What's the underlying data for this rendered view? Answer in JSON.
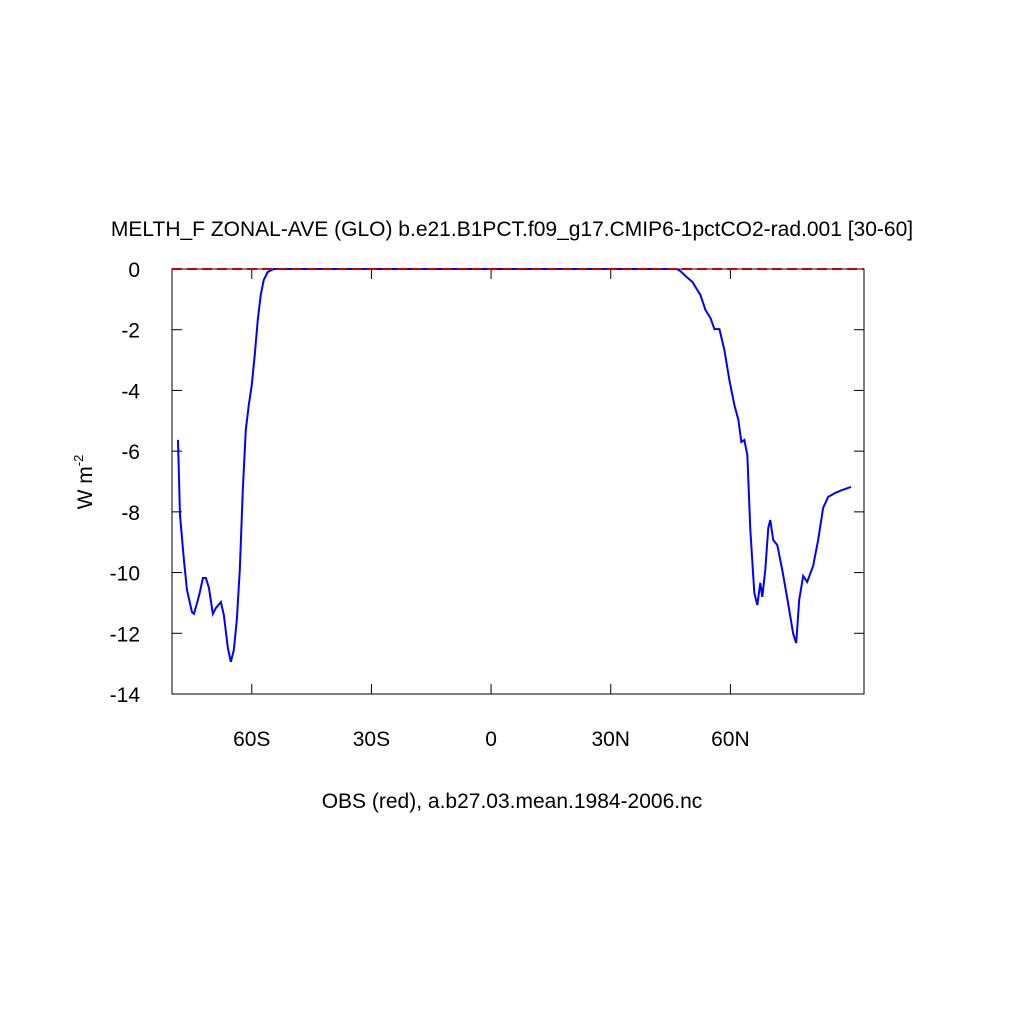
{
  "chart_data": {
    "type": "line",
    "title": "MELTH_F ZONAL-AVE (GLO) b.e21.B1PCT.f09_g17.CMIP6-1pctCO2-rad.001 [30-60]",
    "ylabel": {
      "text": "W m",
      "superscript": "-2"
    },
    "xlabel": "OBS (red), a.b27.03.mean.1984-2006.nc",
    "xlim": [
      -80,
      93.5
    ],
    "ylim": [
      -14,
      0
    ],
    "xticks": [
      {
        "value": -60,
        "label": "60S"
      },
      {
        "value": -30,
        "label": "30S"
      },
      {
        "value": 0,
        "label": "0"
      },
      {
        "value": 30,
        "label": "30N"
      },
      {
        "value": 60,
        "label": "60N"
      }
    ],
    "yticks": [
      0,
      -2,
      -4,
      -6,
      -8,
      -10,
      -12,
      -14
    ],
    "series": [
      {
        "color": "#0000ff",
        "dash": false,
        "x": [
          -78.5,
          -78,
          -77,
          -76.25,
          -75,
          -74.5,
          -73.5,
          -73,
          -72.25,
          -71.5,
          -70.75,
          -69.75,
          -69,
          -67.75,
          -67,
          -66,
          -65.25,
          -64.5,
          -63.75,
          -63,
          -62.25,
          -61.5,
          -60.75,
          -60,
          -59.25,
          -58.5,
          -57.75,
          -57,
          -56,
          -54.5,
          46.5,
          47.5,
          48.75,
          50.5,
          52.5,
          53.75,
          55,
          56,
          57.25,
          58.5,
          59.75,
          61,
          62,
          62.75,
          63.5,
          64.25,
          65,
          66,
          66.75,
          67.5,
          68,
          68.75,
          69.5,
          70,
          70.75,
          71.75,
          73,
          74.25,
          75.75,
          76.5,
          77.25,
          78.25,
          79.25,
          80.75,
          82,
          83.25,
          84.5,
          86.25,
          88,
          90.25
        ],
        "values": [
          -5.63,
          -8.1,
          -9.6,
          -10.57,
          -11.3,
          -11.36,
          -10.9,
          -10.64,
          -10.18,
          -10.18,
          -10.5,
          -11.36,
          -11.17,
          -10.97,
          -11.4,
          -12.48,
          -12.94,
          -12.55,
          -11.56,
          -9.91,
          -7.28,
          -5.3,
          -4.48,
          -3.82,
          -2.83,
          -1.68,
          -0.86,
          -0.36,
          -0.1,
          0,
          0,
          -0.07,
          -0.23,
          -0.43,
          -0.86,
          -1.35,
          -1.61,
          -1.98,
          -1.98,
          -2.67,
          -3.66,
          -4.48,
          -4.97,
          -5.7,
          -5.63,
          -6.13,
          -8.6,
          -10.67,
          -11.07,
          -10.34,
          -10.8,
          -9.91,
          -8.53,
          -8.27,
          -8.93,
          -9.09,
          -9.91,
          -10.84,
          -12.02,
          -12.32,
          -10.9,
          -10.11,
          -10.31,
          -9.78,
          -8.93,
          -7.87,
          -7.51,
          -7.38,
          -7.28,
          -7.18
        ]
      },
      {
        "color": "#cc0000",
        "dash": true,
        "x": [
          -80,
          93.5
        ],
        "values": [
          0,
          0
        ]
      }
    ]
  }
}
